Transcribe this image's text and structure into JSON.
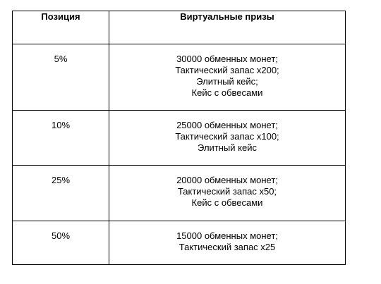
{
  "table": {
    "headers": {
      "position": "Позиция",
      "prizes": "Виртуальные призы"
    },
    "rows": [
      {
        "position": "5%",
        "prizes": [
          "30000 обменных монет;",
          "Тактический запас x200;",
          "Элитный кейс;",
          "Кейс с обвесами"
        ]
      },
      {
        "position": "10%",
        "prizes": [
          "25000 обменных монет;",
          "Тактический запас x100;",
          "Элитный кейс"
        ]
      },
      {
        "position": "25%",
        "prizes": [
          "20000 обменных монет;",
          "Тактический запас x50;",
          "Кейс с обвесами"
        ]
      },
      {
        "position": "50%",
        "prizes": [
          "15000 обменных монет;",
          "Тактический запас x25"
        ]
      }
    ]
  }
}
